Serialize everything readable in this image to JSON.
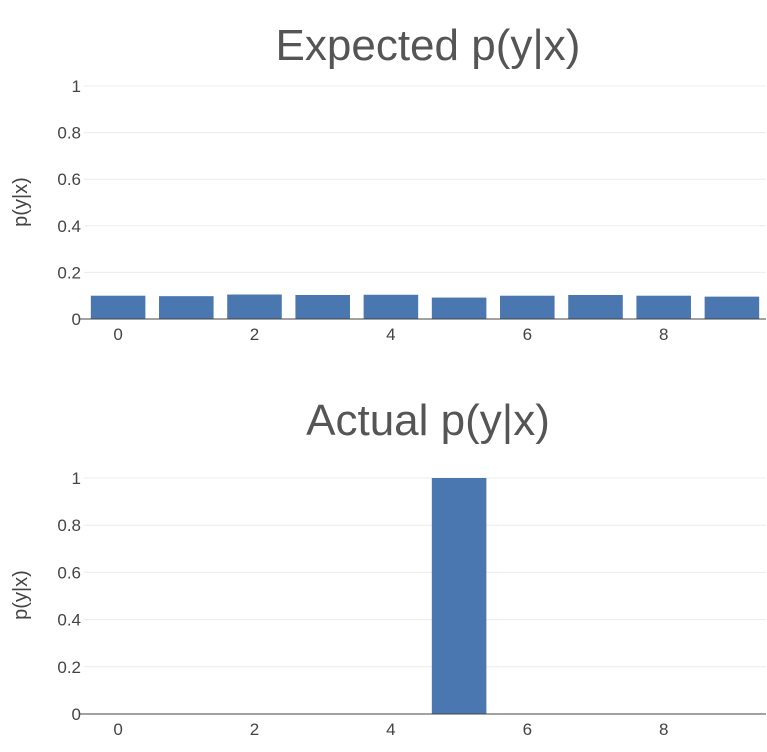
{
  "chart_data": [
    {
      "type": "bar",
      "title": "Expected p(y|x)",
      "xlabel": "",
      "ylabel": "p(y|x)",
      "categories": [
        0,
        1,
        2,
        3,
        4,
        5,
        6,
        7,
        8,
        9
      ],
      "values": [
        0.1,
        0.098,
        0.105,
        0.103,
        0.104,
        0.092,
        0.1,
        0.103,
        0.1,
        0.096
      ],
      "x_ticks": [
        "0",
        "2",
        "4",
        "6",
        "8"
      ],
      "y_ticks": [
        "0",
        "0.2",
        "0.4",
        "0.6",
        "0.8",
        "1"
      ],
      "ylim": [
        0,
        1
      ],
      "grid": true,
      "color": "#4a77b0"
    },
    {
      "type": "bar",
      "title": "Actual p(y|x)",
      "xlabel": "",
      "ylabel": "p(y|x)",
      "categories": [
        0,
        1,
        2,
        3,
        4,
        5,
        6,
        7,
        8,
        9
      ],
      "values": [
        0,
        0,
        0,
        0,
        0,
        1,
        0,
        0,
        0,
        0
      ],
      "x_ticks": [
        "0",
        "2",
        "4",
        "6",
        "8"
      ],
      "y_ticks": [
        "0",
        "0.2",
        "0.4",
        "0.6",
        "0.8",
        "1"
      ],
      "ylim": [
        0,
        1
      ],
      "grid": true,
      "color": "#4a77b0"
    }
  ]
}
